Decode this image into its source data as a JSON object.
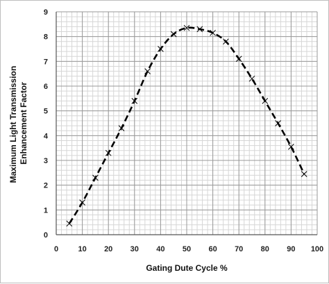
{
  "chart_data": {
    "type": "line",
    "title": "",
    "xlabel": "Gating Dute Cycle %",
    "ylabel_lines": [
      "Maximum Light Transmission",
      "Enhancement Factor"
    ],
    "xlim": [
      0,
      100
    ],
    "ylim": [
      0,
      9
    ],
    "x_ticks": [
      0,
      10,
      20,
      30,
      40,
      50,
      60,
      70,
      80,
      90,
      100
    ],
    "y_ticks": [
      0,
      1,
      2,
      3,
      4,
      5,
      6,
      7,
      8,
      9
    ],
    "x_minor_step": 2,
    "y_minor_step": 0.2,
    "grid": true,
    "legend": "none",
    "series": [
      {
        "marker": "x",
        "line_style": "dashed",
        "color": "#000000",
        "x": [
          5,
          10,
          15,
          20,
          25,
          30,
          35,
          40,
          45,
          50,
          55,
          60,
          65,
          70,
          75,
          80,
          85,
          90,
          95
        ],
        "y": [
          0.45,
          1.3,
          2.3,
          3.3,
          4.3,
          5.4,
          6.6,
          7.5,
          8.1,
          8.35,
          8.3,
          8.15,
          7.8,
          7.1,
          6.3,
          5.4,
          4.5,
          3.55,
          2.45
        ]
      }
    ]
  },
  "colors": {
    "grid_major": "#9a9a9a",
    "grid_minor": "#d6d6d6",
    "series": "#000000"
  }
}
